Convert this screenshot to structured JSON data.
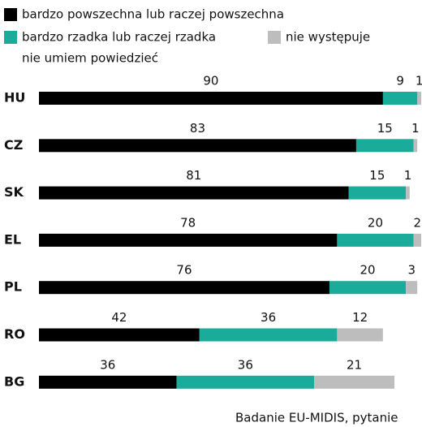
{
  "chart_data": {
    "type": "stacked-bar-horizontal",
    "categories": [
      "HU",
      "CZ",
      "SK",
      "EL",
      "PL",
      "RO",
      "BG"
    ],
    "series": [
      {
        "name": "bardzo powszechna lub raczej powszechna",
        "color": "#000000",
        "values": [
          90,
          83,
          81,
          78,
          76,
          42,
          36
        ]
      },
      {
        "name": "bardzo rzadka lub raczej rzadka",
        "color": "#1aab9b",
        "values": [
          9,
          15,
          15,
          20,
          20,
          36,
          36
        ]
      },
      {
        "name": "nie występuje",
        "color": "#bdbdbd",
        "values": [
          1,
          1,
          1,
          2,
          3,
          12,
          21
        ]
      },
      {
        "name": "nie umiem powiedzieć",
        "color": "#ffffff",
        "values": [
          0,
          1,
          3,
          0,
          1,
          10,
          7
        ],
        "show_labels": false
      }
    ],
    "xlim": [
      0,
      100
    ],
    "source": "Badanie EU-MIDIS, pytanie"
  }
}
